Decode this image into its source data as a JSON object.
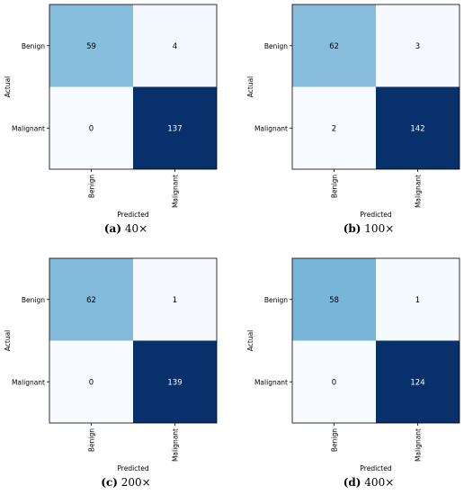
{
  "chart_data": [
    {
      "type": "heatmap",
      "x_categories": [
        "Benign",
        "Malignant"
      ],
      "y_categories": [
        "Benign",
        "Malignant"
      ],
      "matrix": [
        [
          59,
          4
        ],
        [
          0,
          137
        ]
      ],
      "xlabel": "Predicted",
      "ylabel": "Actual",
      "caption_letter": "(a)",
      "caption_text": "40×",
      "colormap": "Blues"
    },
    {
      "type": "heatmap",
      "x_categories": [
        "Benign",
        "Malignant"
      ],
      "y_categories": [
        "Benign",
        "Malignant"
      ],
      "matrix": [
        [
          62,
          3
        ],
        [
          2,
          142
        ]
      ],
      "xlabel": "Predicted",
      "ylabel": "Actual",
      "caption_letter": "(b)",
      "caption_text": "100×",
      "colormap": "Blues"
    },
    {
      "type": "heatmap",
      "x_categories": [
        "Benign",
        "Malignant"
      ],
      "y_categories": [
        "Benign",
        "Malignant"
      ],
      "matrix": [
        [
          62,
          1
        ],
        [
          0,
          139
        ]
      ],
      "xlabel": "Predicted",
      "ylabel": "Actual",
      "caption_letter": "(c)",
      "caption_text": "200×",
      "colormap": "Blues"
    },
    {
      "type": "heatmap",
      "x_categories": [
        "Benign",
        "Malignant"
      ],
      "y_categories": [
        "Benign",
        "Malignant"
      ],
      "matrix": [
        [
          58,
          1
        ],
        [
          0,
          124
        ]
      ],
      "xlabel": "Predicted",
      "ylabel": "Actual",
      "caption_letter": "(d)",
      "caption_text": "400×",
      "colormap": "Blues"
    }
  ]
}
